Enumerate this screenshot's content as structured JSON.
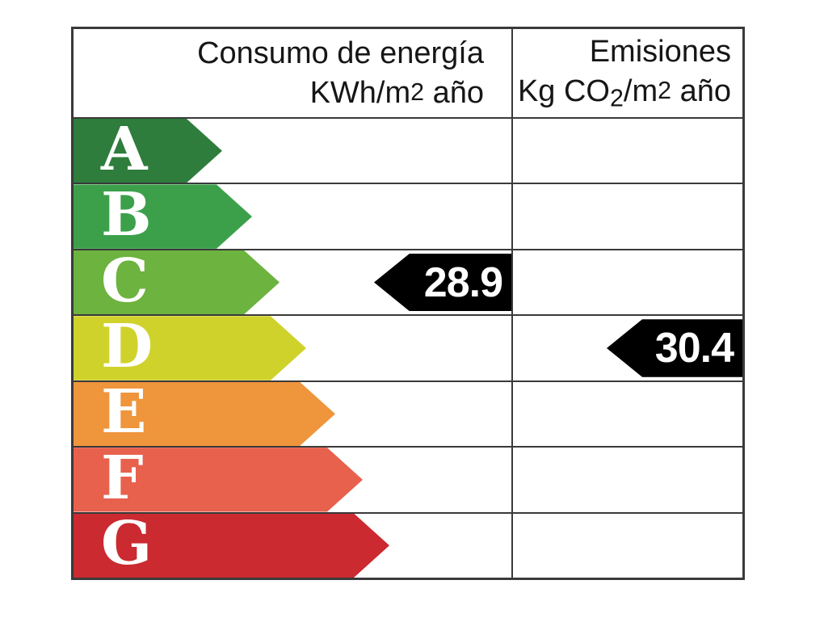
{
  "chart_data": {
    "type": "bar",
    "title": "",
    "categories": [
      "A",
      "B",
      "C",
      "D",
      "E",
      "F",
      "G"
    ],
    "series": [
      {
        "name": "Consumo de energía KWh/m2 año",
        "rating": "C",
        "value": "28.9"
      },
      {
        "name": "Emisiones Kg CO2/m2 año",
        "rating": "D",
        "value": "30.4"
      }
    ],
    "legend": false,
    "layout": "horizontal rating arrows A (best) to G (worst), black pointer arrows mark rated values"
  },
  "header": {
    "consumption": {
      "title": "Consumo de energía",
      "unit_prefix": "KWh/m",
      "unit_exp": "2",
      "unit_suffix": " año"
    },
    "emissions": {
      "title": "Emisiones",
      "unit_prefix": "Kg CO",
      "unit_sub": "2",
      "unit_mid": "/m",
      "unit_exp": "2",
      "unit_suffix": " año"
    }
  },
  "ratings": [
    {
      "letter": "A",
      "color": "#2e7d3c"
    },
    {
      "letter": "B",
      "color": "#3ca04b"
    },
    {
      "letter": "C",
      "color": "#6db33f"
    },
    {
      "letter": "D",
      "color": "#d0d22c"
    },
    {
      "letter": "E",
      "color": "#ef953c"
    },
    {
      "letter": "F",
      "color": "#e7614d"
    },
    {
      "letter": "G",
      "color": "#ca2a30"
    }
  ],
  "colors": {
    "value_arrow_bg": "#000000",
    "value_text": "#ffffff",
    "grid_line": "#3a3a3a",
    "letter_text": "#ffffff",
    "background": "#ffffff"
  }
}
